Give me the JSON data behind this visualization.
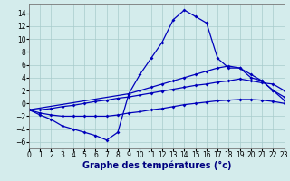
{
  "title": "Graphe des températures (°c)",
  "bg_color": "#d4ecec",
  "grid_color": "#a8cccc",
  "line_color": "#0000bb",
  "line1_x": [
    0,
    1,
    2,
    3,
    4,
    5,
    6,
    7,
    8,
    9,
    10,
    11,
    12,
    13,
    14,
    15,
    16,
    17,
    18,
    19,
    20,
    21,
    22,
    23
  ],
  "line1_y": [
    -1.0,
    -1.8,
    -2.5,
    -3.5,
    -4.0,
    -4.5,
    -5.0,
    -5.7,
    -4.5,
    1.5,
    4.5,
    7.0,
    9.5,
    13.0,
    14.5,
    13.5,
    12.5,
    7.0,
    5.5,
    5.5,
    4.5,
    3.5,
    2.0,
    0.5
  ],
  "line2_x": [
    0,
    9,
    10,
    11,
    12,
    13,
    14,
    15,
    16,
    17,
    18,
    19,
    20,
    21,
    22,
    23
  ],
  "line2_y": [
    -1.0,
    1.5,
    2.0,
    2.5,
    3.0,
    3.5,
    4.0,
    4.5,
    5.0,
    5.5,
    5.8,
    5.5,
    4.0,
    3.5,
    2.0,
    1.0
  ],
  "line3_x": [
    0,
    1,
    2,
    3,
    4,
    5,
    6,
    7,
    8,
    9,
    10,
    11,
    12,
    13,
    14,
    15,
    16,
    17,
    18,
    19,
    20,
    21,
    22,
    23
  ],
  "line3_y": [
    -1.0,
    -1.0,
    -0.8,
    -0.5,
    -0.3,
    0.0,
    0.3,
    0.5,
    0.8,
    1.0,
    1.3,
    1.6,
    1.9,
    2.2,
    2.5,
    2.8,
    3.0,
    3.3,
    3.5,
    3.8,
    3.5,
    3.2,
    3.0,
    2.0
  ],
  "line4_x": [
    0,
    1,
    2,
    3,
    4,
    5,
    6,
    7,
    8,
    9,
    10,
    11,
    12,
    13,
    14,
    15,
    16,
    17,
    18,
    19,
    20,
    21,
    22,
    23
  ],
  "line4_y": [
    -1.0,
    -1.5,
    -1.8,
    -2.0,
    -2.0,
    -2.0,
    -2.0,
    -2.0,
    -1.8,
    -1.5,
    -1.3,
    -1.0,
    -0.8,
    -0.5,
    -0.2,
    0.0,
    0.2,
    0.4,
    0.5,
    0.6,
    0.6,
    0.5,
    0.3,
    0.0
  ],
  "ylim": [
    -7,
    15.5
  ],
  "yticks": [
    -6,
    -4,
    -2,
    0,
    2,
    4,
    6,
    8,
    10,
    12,
    14
  ],
  "xlim": [
    0,
    23
  ],
  "tick_fontsize": 5.5,
  "xlabel_fontsize": 7
}
